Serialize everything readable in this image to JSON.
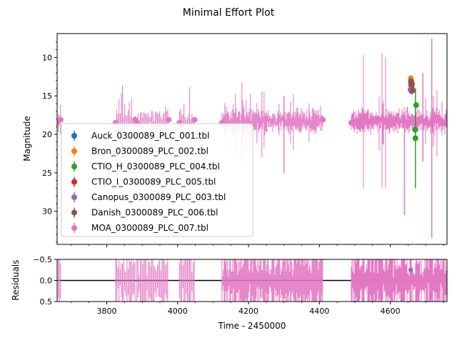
{
  "chart_data": {
    "type": "scatter",
    "title": "Minimal Effort Plot",
    "main": {
      "xlim": [
        3660,
        4760
      ],
      "ylim": [
        34.3,
        6.9
      ],
      "y_inverted": true,
      "ylabel": "Magnitude",
      "yticks": [
        10,
        15,
        20,
        25,
        30
      ],
      "ytick_labels": [
        "10",
        "15",
        "20",
        "25",
        "30"
      ],
      "legend_location": "lower-left",
      "series": [
        {
          "name": "Auck_0300089_PLC_001.tbl",
          "color": "#1f77b4",
          "points": [
            [
              4659,
              13.6
            ],
            [
              4660,
              14.0
            ]
          ]
        },
        {
          "name": "Bron_0300089_PLC_002.tbl",
          "color": "#ff7f0e",
          "points": [
            [
              4658,
              12.7
            ],
            [
              4659,
              13.0
            ],
            [
              4661,
              13.3
            ]
          ]
        },
        {
          "name": "CTIO_H_0300089_PLC_004.tbl",
          "color": "#2ca02c",
          "points": [
            [
              4670,
              19.4
            ],
            [
              4671,
              20.5
            ],
            [
              4673,
              16.2
            ]
          ]
        },
        {
          "name": "CTIO_I_0300089_PLC_005.tbl",
          "color": "#d62728",
          "points": [
            [
              4659,
              13.4
            ],
            [
              4660,
              13.8
            ]
          ]
        },
        {
          "name": "Canopus_0300089_PLC_003.tbl",
          "color": "#9467bd",
          "points": [
            [
              4657,
              14.2
            ],
            [
              4660,
              14.4
            ]
          ]
        },
        {
          "name": "Danish_0300089_PLC_006.tbl",
          "color": "#8c564b",
          "points": [
            [
              4658,
              13.1
            ],
            [
              4661,
              13.5
            ],
            [
              4663,
              14.3
            ]
          ]
        },
        {
          "name": "MOA_0300089_PLC_007.tbl",
          "color": "#e377c2",
          "segments": [
            [
              3660,
              3670
            ],
            [
              3825,
              3880
            ],
            [
              3885,
              3975
            ],
            [
              4005,
              4048
            ],
            [
              4125,
              4410
            ],
            [
              4490,
              4760
            ]
          ],
          "baseline_magnitude": 18.3
        }
      ]
    },
    "residuals": {
      "ylabel": "Residuals",
      "ylim": [
        0.5,
        -0.5
      ],
      "y_inverted": true,
      "yticks": [
        -0.5,
        0.0,
        0.5
      ],
      "ytick_labels": [
        "−0.5",
        "0.0",
        "0.5"
      ],
      "zero_line": 0.0
    },
    "xlabel": "Time - 2450000",
    "xticks": [
      3800,
      4000,
      4200,
      4400,
      4600
    ],
    "xtick_labels": [
      "3800",
      "4000",
      "4200",
      "4400",
      "4600"
    ]
  }
}
